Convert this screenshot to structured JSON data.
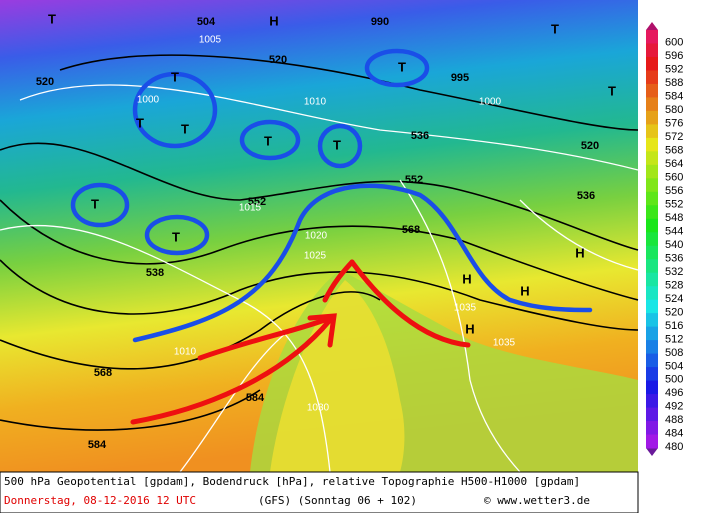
{
  "map": {
    "labels": [
      "T",
      "T",
      "T",
      "T",
      "T",
      "T",
      "T",
      "T",
      "T",
      "T",
      "T",
      "H",
      "H",
      "H",
      "H",
      "H",
      "504",
      "520",
      "520",
      "536",
      "538",
      "552",
      "552",
      "568",
      "568",
      "584",
      "584",
      "520",
      "536",
      "1000",
      "1005",
      "1010",
      "1015",
      "1020",
      "1025",
      "1030",
      "1035",
      "1000",
      "995",
      "990",
      "1010",
      "1035"
    ]
  },
  "legend": {
    "ticks": [
      600,
      596,
      592,
      588,
      584,
      580,
      576,
      572,
      568,
      564,
      560,
      556,
      552,
      548,
      544,
      540,
      536,
      532,
      528,
      524,
      520,
      516,
      512,
      508,
      504,
      500,
      496,
      492,
      488,
      484,
      480
    ]
  },
  "footer": {
    "line1": "500 hPa Geopotential [gpdam], Bodendruck [hPa], relative Topographie H500-H1000 [gpdam]",
    "date": "Donnerstag, 08-12-2016  12 UTC",
    "run": "(GFS)  (Sonntag 06 + 102)",
    "credit": "© www.wetter3.de"
  }
}
